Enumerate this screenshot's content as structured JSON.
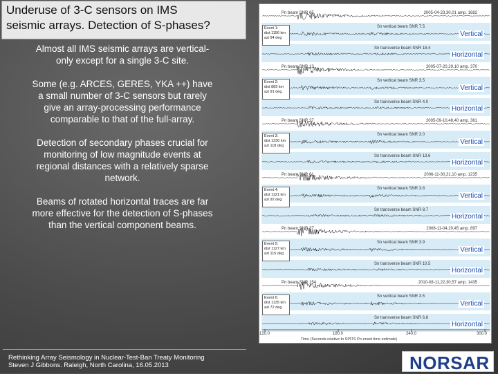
{
  "title": {
    "line1": "Underuse of 3-C sensors on IMS",
    "line2": "seismic arrays. Detection of S-phases?"
  },
  "bullets": [
    [
      "Almost all IMS seismic arrays are vertical-",
      "only except for a single 3-C site."
    ],
    [
      "Some (e.g. ARCES, GERES, YKA ++) have",
      "a small number of 3-C sensors but rarely",
      "give an array-processing performance",
      "comparable to that of the full-array."
    ],
    [
      "Detection of secondary phases crucial for",
      "monitoring of low magnitude events at",
      "regional distances with a relatively sparse",
      "network."
    ],
    [
      "Beams of rotated horizontal traces are far",
      "more effective for the detection of S-phases",
      "than the vertical component beams."
    ]
  ],
  "figure": {
    "vertical_tag": "Vertical",
    "horizontal_tag": "Horizontal",
    "events": [
      {
        "pn": "Pn beam SNR 65",
        "info": "2005-04-23,30,01  amp. 1682",
        "event": [
          "Event 1:",
          "dist 1156 km",
          "azi 94 deg"
        ],
        "sv": "Sn vertical beam   SNR  7.5",
        "sh": "Sn transverse beam SNR 18.4"
      },
      {
        "pn": "Pn beam SNR 13",
        "info": "2005-07-20,29,10  amp. 370",
        "event": [
          "Event 2:",
          "dist 889 km",
          "azi 91 deg"
        ],
        "sv": "Sn vertical beam   SNR  3.5",
        "sh": "Sn transverse beam SNR 4.0"
      },
      {
        "pn": "Pn beam SNR 27",
        "info": "2005-09-10,48,40  amp. 361",
        "event": [
          "Event 3:",
          "dist 1330 km",
          "azi 118 deg"
        ],
        "sv": "Sn vertical beam   SNR  3.0",
        "sh": "Sn transverse beam SNR 13.6"
      },
      {
        "pn": "Pn beam SNR 61",
        "info": "2006-11-30,21,10  amp. 1235",
        "event": [
          "Event 4:",
          "dist 1121 km",
          "azi 92 deg"
        ],
        "sv": "Sn vertical beam   SNR  3.8",
        "sh": "Sn transverse beam SNR  8.7"
      },
      {
        "pn": "Pn beam SNR 37",
        "info": "2008-11-04,20,45  amp. 897",
        "event": [
          "Event 5:",
          "dist 1127 km",
          "azi 115 deg"
        ],
        "sv": "Sn vertical beam   SNR  3.9",
        "sh": "Sn transverse beam SNR 10.5"
      },
      {
        "pn": "Pn beam SNR 154",
        "info": "2010-08-11,22,30,57  amp. 1435",
        "event": [
          "Event 6:",
          "dist 1135 km",
          "azi 72 deg"
        ],
        "sv": "Sn vertical beam   SNR  3.5",
        "sh": "Sn transverse beam SNR 6.8"
      }
    ],
    "axis": {
      "ticks": [
        "120.0",
        "180.0",
        "240.0",
        "300.0"
      ],
      "title": "Time (Seconds relative to SPITS Pn-onset time estimate)"
    }
  },
  "footer": {
    "line1": "Rethinking Array Seismology in Nuclear-Test-Ban Treaty Monitoring",
    "line2": "Steven J Gibbons. Raleigh, North Carolina, 16.05.2013"
  },
  "logo": {
    "text": "NORSAR",
    "color": "#1f3f8a"
  }
}
